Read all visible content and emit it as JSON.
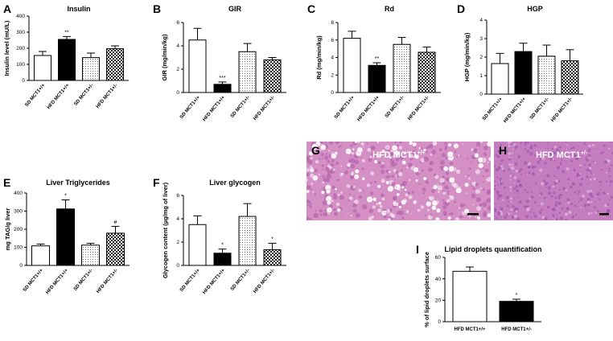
{
  "colors": {
    "bar_stroke": "#000000",
    "hfd_fill": "#000000",
    "sd_fill": "#ffffff",
    "dotted_fill": "#cfcfcf",
    "checker_fill": "#333333",
    "histology_pink": "#d990c8",
    "histology_purple": "#a860b0"
  },
  "chart_data": [
    {
      "id": "A",
      "letter": "A",
      "type": "bar",
      "title": "Insulin",
      "ylabel": "Insulin level (mU/L)",
      "ylim": [
        0,
        400
      ],
      "yticks": [
        "0",
        "100",
        "200",
        "300",
        "400"
      ],
      "categories": [
        "SD MCT1+/+",
        "HFD MCT1+/+",
        "SD MCT1+/-",
        "HFD MCT1+/-"
      ],
      "values": [
        155,
        255,
        142,
        197
      ],
      "errors": [
        25,
        18,
        28,
        18
      ],
      "annotations": [
        "",
        "**",
        "",
        ""
      ],
      "patterns": [
        "white",
        "black",
        "dots",
        "checker"
      ]
    },
    {
      "id": "B",
      "letter": "B",
      "type": "bar",
      "title": "GIR",
      "ylabel": "GIR (mg/min/kg)",
      "ylim": [
        0,
        6
      ],
      "yticks": [
        "0",
        "2",
        "4",
        "6"
      ],
      "categories": [
        "SD MCT1+/+",
        "HFD MCT1+/+",
        "SD MCT1+/-",
        "HFD MCT1+/-"
      ],
      "values": [
        4.5,
        0.7,
        3.5,
        2.8
      ],
      "errors": [
        1.0,
        0.2,
        0.7,
        0.2
      ],
      "annotations": [
        "",
        "***",
        "",
        ""
      ],
      "patterns": [
        "white",
        "black",
        "dots",
        "checker"
      ]
    },
    {
      "id": "C",
      "letter": "C",
      "type": "bar",
      "title": "Rd",
      "ylabel": "Rd (mg/min/kg)",
      "ylim": [
        0,
        8
      ],
      "yticks": [
        "0",
        "2",
        "4",
        "6",
        "8"
      ],
      "categories": [
        "SD MCT1+/+",
        "HFD MCT1+/+",
        "SD MCT1+/-",
        "HFD MCT1+/-"
      ],
      "values": [
        6.2,
        3.1,
        5.5,
        4.6
      ],
      "errors": [
        0.8,
        0.3,
        0.8,
        0.6
      ],
      "annotations": [
        "",
        "**",
        "",
        ""
      ],
      "patterns": [
        "white",
        "black",
        "dots",
        "checker"
      ]
    },
    {
      "id": "D",
      "letter": "D",
      "type": "bar",
      "title": "HGP",
      "ylabel": "HGP (mg/min/kg)",
      "ylim": [
        0,
        4
      ],
      "yticks": [
        "0",
        "1",
        "2",
        "3",
        "4"
      ],
      "categories": [
        "SD MCT1+/+",
        "HFD MCT1+/+",
        "SD MCT1+/-",
        "HFD MCT1+/-"
      ],
      "values": [
        1.65,
        2.3,
        2.05,
        1.8
      ],
      "errors": [
        0.55,
        0.45,
        0.6,
        0.6
      ],
      "annotations": [
        "",
        "",
        "",
        ""
      ],
      "patterns": [
        "white",
        "black",
        "dots",
        "checker"
      ]
    },
    {
      "id": "E",
      "letter": "E",
      "type": "bar",
      "title": "Liver Triglycerides",
      "ylabel": "mg TAG/g liver",
      "ylim": [
        0,
        400
      ],
      "yticks": [
        "0",
        "100",
        "200",
        "300",
        "400"
      ],
      "categories": [
        "SD MCT1+/+",
        "HFD MCT1+/+",
        "SD MCT1+/-",
        "HFD MCT1+/-"
      ],
      "values": [
        108,
        312,
        112,
        178
      ],
      "errors": [
        10,
        50,
        10,
        38
      ],
      "annotations": [
        "",
        "*",
        "",
        "#"
      ],
      "patterns": [
        "white",
        "black",
        "dots",
        "checker"
      ]
    },
    {
      "id": "F",
      "letter": "F",
      "type": "bar",
      "title": "Liver glycogen",
      "ylabel": "Glycogen content (µg/mg of liver)",
      "ylim": [
        0,
        6
      ],
      "yticks": [
        "0",
        "2",
        "4",
        "6"
      ],
      "categories": [
        "SD MCT1+/+",
        "HFD MCT1+/+",
        "SD MCT1+/-",
        "HFD MCT1+/-"
      ],
      "values": [
        3.5,
        1.05,
        4.2,
        1.35
      ],
      "errors": [
        0.75,
        0.35,
        1.1,
        0.55
      ],
      "annotations": [
        "",
        "*",
        "",
        "*"
      ],
      "patterns": [
        "white",
        "black",
        "dots",
        "checker"
      ]
    },
    {
      "id": "I",
      "letter": "I",
      "type": "bar",
      "title": "Lipid droplets quantification",
      "ylabel": "% of lipid droplets surface",
      "ylim": [
        0,
        60
      ],
      "yticks": [
        "0",
        "20",
        "40",
        "60"
      ],
      "categories": [
        "HFD MCT1+/+",
        "HFD MCT1+/-"
      ],
      "values": [
        47,
        19
      ],
      "errors": [
        4,
        2
      ],
      "annotations": [
        "",
        "*"
      ],
      "patterns": [
        "white",
        "black"
      ]
    }
  ],
  "histology": [
    {
      "letter": "G",
      "label": "HFD MCT1",
      "sup": "+/+"
    },
    {
      "letter": "H",
      "label": "HFD MCT1",
      "sup": "+/-"
    }
  ]
}
